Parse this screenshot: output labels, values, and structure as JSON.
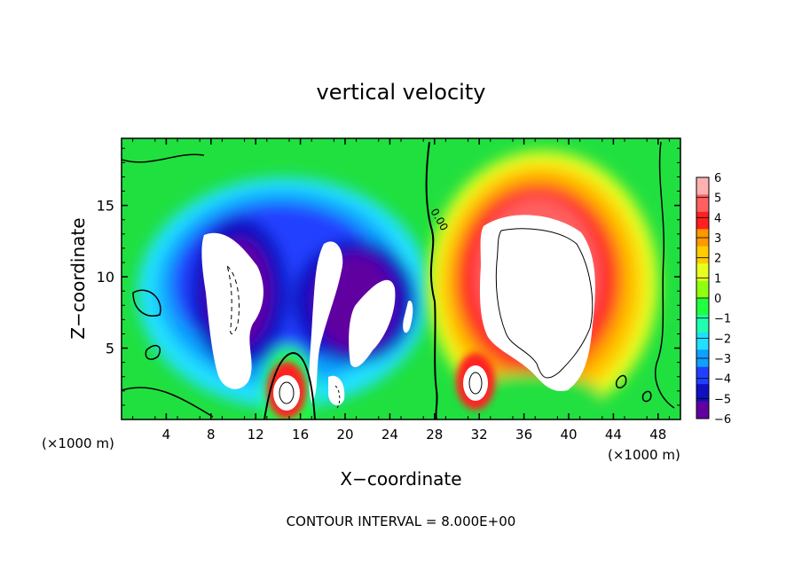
{
  "chart_data": {
    "type": "heatmap",
    "title": "vertical velocity",
    "xlabel": "X−coordinate",
    "ylabel": "Z−coordinate",
    "x_unit": "(×1000 m)",
    "footer": "CONTOUR INTERVAL = 8.000E+00",
    "contour_label": "0.00",
    "xlim": [
      0,
      50
    ],
    "ylim": [
      0,
      19.7
    ],
    "x_ticks": [
      4,
      8,
      12,
      16,
      20,
      24,
      28,
      32,
      36,
      40,
      44,
      48
    ],
    "y_ticks": [
      5,
      10,
      15
    ],
    "colorbar": {
      "levels": [
        6,
        5,
        4,
        3,
        2,
        1,
        0,
        -1,
        -2,
        -3,
        -4,
        -5,
        -6
      ],
      "labels": [
        "6",
        "5",
        "4",
        "3",
        "2",
        "1",
        "0",
        "−1",
        "−2",
        "−3",
        "−4",
        "−5",
        "−6"
      ],
      "colors": [
        "#ffb0b0",
        "#ff6060",
        "#ff2020",
        "#ff9900",
        "#ffcc00",
        "#e8ff20",
        "#90ff10",
        "#20ff40",
        "#20ffb0",
        "#20e0ff",
        "#10a0ff",
        "#2040ff",
        "#1010c0",
        "#6000a0"
      ],
      "over_color": "#ffffff"
    },
    "features": [
      {
        "kind": "downdraft",
        "x": 10.5,
        "z": 9.0,
        "value": -6
      },
      {
        "kind": "downdraft",
        "x": 20.5,
        "z": 8.0,
        "value": -6
      },
      {
        "kind": "updraft",
        "x": 37.5,
        "z": 9.0,
        "value": 6
      },
      {
        "kind": "updraft",
        "x": 15.0,
        "z": 2.0,
        "value": 6
      },
      {
        "kind": "updraft",
        "x": 31.5,
        "z": 2.8,
        "value": 6
      }
    ]
  }
}
